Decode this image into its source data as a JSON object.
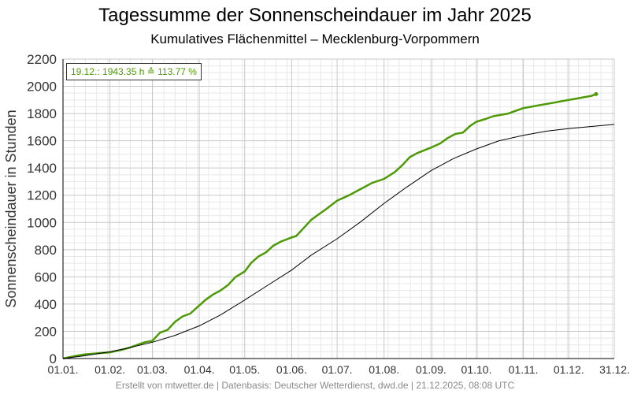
{
  "colors": {
    "series_2025": "#4e9a06",
    "series_mean": "#000000",
    "annotation_text": "#4e9a06",
    "footer_text": "#8a8a8a",
    "grid_major": "#c8c8c8",
    "grid_minor": "#e8e8e8"
  },
  "footer": "Erstellt von mtwetter.de | Datenbasis: Deutscher Wetterdienst, dwd.de | 21.12.2025, 08:08 UTC",
  "chart_data": {
    "type": "line",
    "title": "Tagessumme der Sonnenscheindauer im Jahr 2025",
    "subtitle": "Kumulatives Flächenmittel – Mecklenburg-Vorpommern",
    "xlabel": "",
    "ylabel": "Sonnenscheindauer in Stunden",
    "x_unit": "day of year 2025",
    "xlim": [
      1,
      365
    ],
    "ylim": [
      0,
      2200
    ],
    "y_ticks": [
      0,
      200,
      400,
      600,
      800,
      1000,
      1200,
      1400,
      1600,
      1800,
      2000,
      2200
    ],
    "x_ticks": [
      {
        "label": "01.01.",
        "day": 1
      },
      {
        "label": "01.02.",
        "day": 32
      },
      {
        "label": "01.03.",
        "day": 60
      },
      {
        "label": "01.04.",
        "day": 91
      },
      {
        "label": "01.05.",
        "day": 121
      },
      {
        "label": "01.06.",
        "day": 152
      },
      {
        "label": "01.07.",
        "day": 182
      },
      {
        "label": "01.08.",
        "day": 213
      },
      {
        "label": "01.09.",
        "day": 244
      },
      {
        "label": "01.10.",
        "day": 274
      },
      {
        "label": "01.11.",
        "day": 305
      },
      {
        "label": "01.12.",
        "day": 335
      },
      {
        "label": "31.12.",
        "day": 365
      }
    ],
    "grid": true,
    "annotation": "19.12.: 1943.35 h ≙ 113.77 %",
    "series": [
      {
        "color": "#4e9a06",
        "x": [
          1,
          5,
          10,
          15,
          20,
          25,
          32,
          40,
          45,
          50,
          55,
          60,
          65,
          70,
          75,
          80,
          85,
          91,
          95,
          100,
          105,
          110,
          115,
          121,
          125,
          130,
          135,
          140,
          145,
          152,
          155,
          160,
          165,
          170,
          175,
          182,
          190,
          195,
          200,
          205,
          213,
          220,
          225,
          230,
          235,
          244,
          250,
          255,
          260,
          265,
          270,
          274,
          280,
          285,
          290,
          295,
          300,
          305,
          310,
          315,
          320,
          325,
          330,
          335,
          340,
          345,
          350,
          353
        ],
        "y": [
          0,
          10,
          20,
          30,
          35,
          40,
          45,
          65,
          80,
          100,
          120,
          130,
          190,
          210,
          270,
          310,
          330,
          390,
          430,
          470,
          500,
          540,
          600,
          640,
          700,
          750,
          780,
          830,
          860,
          890,
          900,
          960,
          1020,
          1060,
          1100,
          1160,
          1200,
          1230,
          1260,
          1290,
          1320,
          1370,
          1420,
          1480,
          1510,
          1550,
          1580,
          1620,
          1650,
          1660,
          1710,
          1740,
          1760,
          1780,
          1790,
          1800,
          1820,
          1840,
          1850,
          1860,
          1870,
          1880,
          1890,
          1900,
          1910,
          1920,
          1930,
          1943
        ]
      },
      {
        "color": "#000000",
        "x": [
          1,
          15,
          32,
          45,
          60,
          75,
          91,
          105,
          121,
          135,
          152,
          165,
          182,
          197,
          213,
          228,
          244,
          259,
          274,
          289,
          305,
          320,
          335,
          350,
          365
        ],
        "y": [
          0,
          20,
          50,
          80,
          120,
          170,
          240,
          320,
          430,
          530,
          650,
          760,
          880,
          1000,
          1140,
          1260,
          1380,
          1470,
          1540,
          1600,
          1640,
          1670,
          1690,
          1705,
          1720
        ]
      }
    ]
  }
}
